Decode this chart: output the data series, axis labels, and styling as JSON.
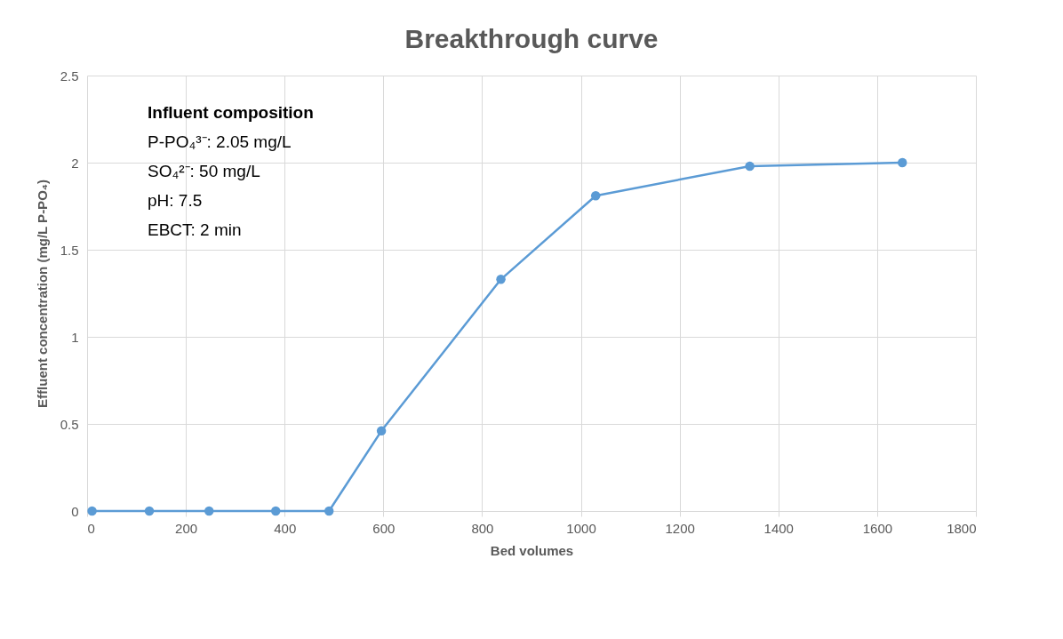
{
  "chart_data": {
    "type": "line",
    "title": "Breakthrough curve",
    "xlabel": "Bed volumes",
    "ylabel": "Effluent concentration (mg/L P-PO₄)",
    "x": [
      10,
      126,
      247,
      382,
      490,
      596,
      838,
      1030,
      1342,
      1651
    ],
    "series": [
      {
        "color": "#5b9bd5",
        "values": [
          0,
          0,
          0,
          0,
          0,
          0.46,
          1.33,
          1.81,
          1.98,
          2.0
        ]
      }
    ],
    "xlim": [
      0,
      1800
    ],
    "xticks": [
      0,
      200,
      400,
      600,
      800,
      1000,
      1200,
      1400,
      1600,
      1800
    ],
    "ylim": [
      0,
      2.5
    ],
    "yticks": [
      0,
      0.5,
      1,
      1.5,
      2,
      2.5
    ],
    "grid": true,
    "marker": "circle",
    "line_style": "solid",
    "annotations": [
      "Influent composition",
      "P-PO₄³⁻: 2.05 mg/L",
      "SO₄²⁻: 50 mg/L",
      "pH: 7.5",
      "EBCT: 2 min"
    ]
  }
}
